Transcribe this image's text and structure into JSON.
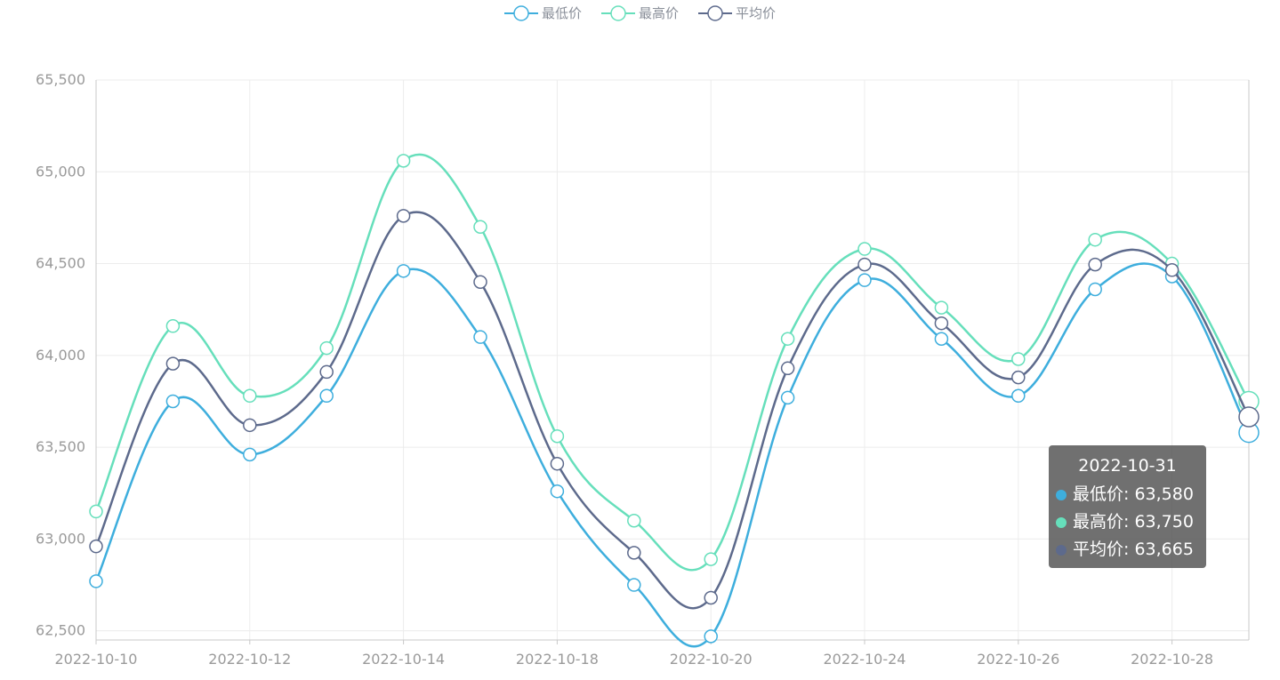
{
  "chart_data": {
    "type": "line",
    "x": [
      "2022-10-10",
      "2022-10-11",
      "2022-10-12",
      "2022-10-13",
      "2022-10-14",
      "2022-10-17",
      "2022-10-18",
      "2022-10-19",
      "2022-10-20",
      "2022-10-21",
      "2022-10-24",
      "2022-10-25",
      "2022-10-26",
      "2022-10-27",
      "2022-10-28",
      "2022-10-31"
    ],
    "x_tick_labels": [
      "2022-10-10",
      "2022-10-12",
      "2022-10-14",
      "2022-10-18",
      "2022-10-20",
      "2022-10-24",
      "2022-10-26",
      "2022-10-28"
    ],
    "series": [
      {
        "name": "最低价",
        "color": "#3eaedd",
        "values": [
          62770,
          63750,
          63460,
          63780,
          64460,
          64100,
          63260,
          62750,
          62470,
          63770,
          64410,
          64090,
          63780,
          64360,
          64430,
          63580
        ]
      },
      {
        "name": "最高价",
        "color": "#66dfbb",
        "values": [
          63150,
          64160,
          63780,
          64040,
          65060,
          64700,
          63560,
          63100,
          62890,
          64090,
          64580,
          64260,
          63980,
          64630,
          64500,
          63750
        ]
      },
      {
        "name": "平均价",
        "color": "#5d6a8c",
        "values": [
          62960,
          63955,
          63620,
          63910,
          64760,
          64400,
          63410,
          62925,
          62680,
          63930,
          64495,
          64175,
          63880,
          64495,
          64465,
          63665
        ]
      }
    ],
    "y_ticks": [
      62500,
      63000,
      63500,
      64000,
      64500,
      65000,
      65500
    ],
    "y_tick_labels": [
      "62,500",
      "63,000",
      "63,500",
      "64,000",
      "64,500",
      "65,000",
      "65,500"
    ],
    "ylim": [
      62450,
      65500
    ],
    "grid": true,
    "legend_position": "top-center"
  },
  "legend": [
    {
      "label": "最低价",
      "color": "#3eaedd",
      "icon": "circle-line-icon"
    },
    {
      "label": "最高价",
      "color": "#66dfbb",
      "icon": "circle-line-icon"
    },
    {
      "label": "平均价",
      "color": "#5d6a8c",
      "icon": "circle-line-icon"
    }
  ],
  "tooltip": {
    "title": "2022-10-31",
    "rows": [
      {
        "label": "最低价: 63,580",
        "color": "#3eaedd"
      },
      {
        "label": "最高价: 63,750",
        "color": "#66dfbb"
      },
      {
        "label": "平均价: 63,665",
        "color": "#5d6a8c"
      }
    ]
  },
  "colors": {
    "axis": "#c8c8c8",
    "grid": "#ececec",
    "tick_text": "#9a9a9a"
  }
}
